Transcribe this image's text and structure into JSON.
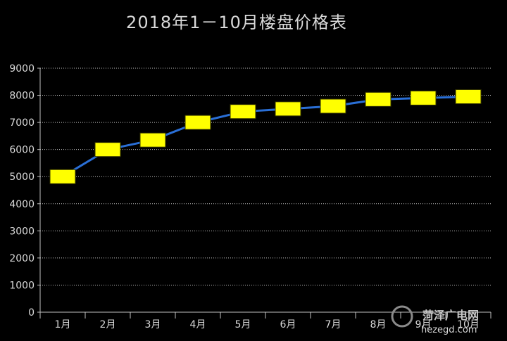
{
  "chart_data": {
    "type": "line",
    "title": "2018年1－10月楼盘价格表",
    "xlabel": "",
    "ylabel": "",
    "categories": [
      "1月",
      "2月",
      "3月",
      "4月",
      "5月",
      "6月",
      "7月",
      "8月",
      "9月",
      "10月"
    ],
    "series": [
      {
        "values": [
          5000,
          6000,
          6350,
          7000,
          7400,
          7500,
          7600,
          7850,
          7900,
          7950
        ]
      }
    ],
    "ylim": [
      0,
      9000
    ],
    "yticks": [
      0,
      1000,
      2000,
      3000,
      4000,
      5000,
      6000,
      7000,
      8000,
      9000
    ],
    "grid": true,
    "legend": "none",
    "line_color": "#2a6fd6",
    "marker_color": "#ffff00",
    "marker_shape": "rectangle",
    "background": "#000000",
    "text_color": "#d9d9d9",
    "grid_color": "#bfbfbf"
  },
  "watermark": {
    "name": "菏泽广电网",
    "url": "hezegd.com"
  }
}
